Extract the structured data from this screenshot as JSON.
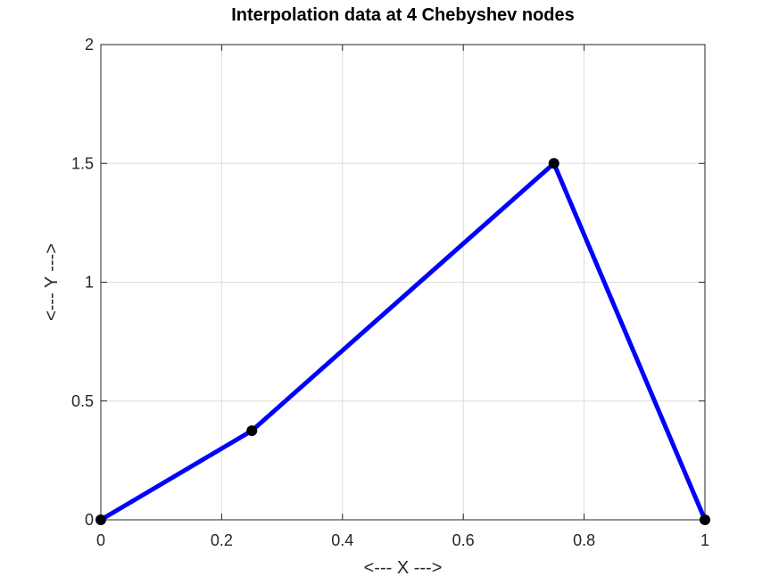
{
  "chart_data": {
    "type": "line",
    "title": "Interpolation data at 4 Chebyshev nodes",
    "xlabel": "<--- X --->",
    "ylabel": "<--- Y --->",
    "xlim": [
      0,
      1
    ],
    "ylim": [
      0,
      2
    ],
    "xticks": [
      0,
      0.2,
      0.4,
      0.6,
      0.8,
      1
    ],
    "xtick_labels": [
      "0",
      "0.2",
      "0.4",
      "0.6",
      "0.8",
      "1"
    ],
    "yticks": [
      0,
      0.5,
      1,
      1.5,
      2
    ],
    "ytick_labels": [
      "0",
      "0.5",
      "1",
      "1.5",
      "2"
    ],
    "grid": true,
    "series": [
      {
        "x": [
          0,
          0.25,
          0.75,
          1
        ],
        "y": [
          0,
          0.375,
          1.5,
          0
        ],
        "line_color": "#0000ff",
        "marker_color": "#000000",
        "marker": "circle"
      }
    ]
  }
}
